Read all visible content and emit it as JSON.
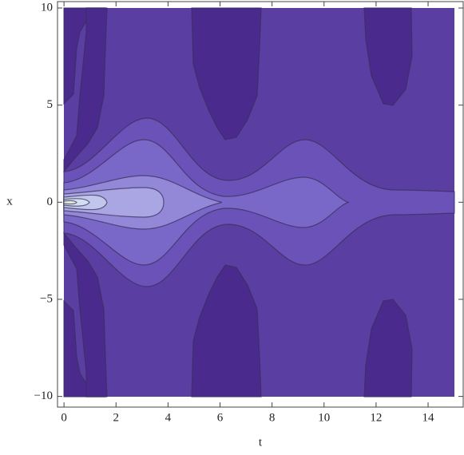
{
  "chart_data": {
    "type": "contour",
    "x_label": "t",
    "y_label": "x",
    "xlim": [
      -0.25,
      15.35
    ],
    "ylim": [
      -10.55,
      10.33
    ],
    "xticks": [
      0,
      2,
      4,
      6,
      8,
      10,
      12,
      14
    ],
    "yticks": [
      {
        "value": -10,
        "label": "−10"
      },
      {
        "value": -5,
        "label": "−5"
      },
      0,
      5,
      10
    ]
  }
}
